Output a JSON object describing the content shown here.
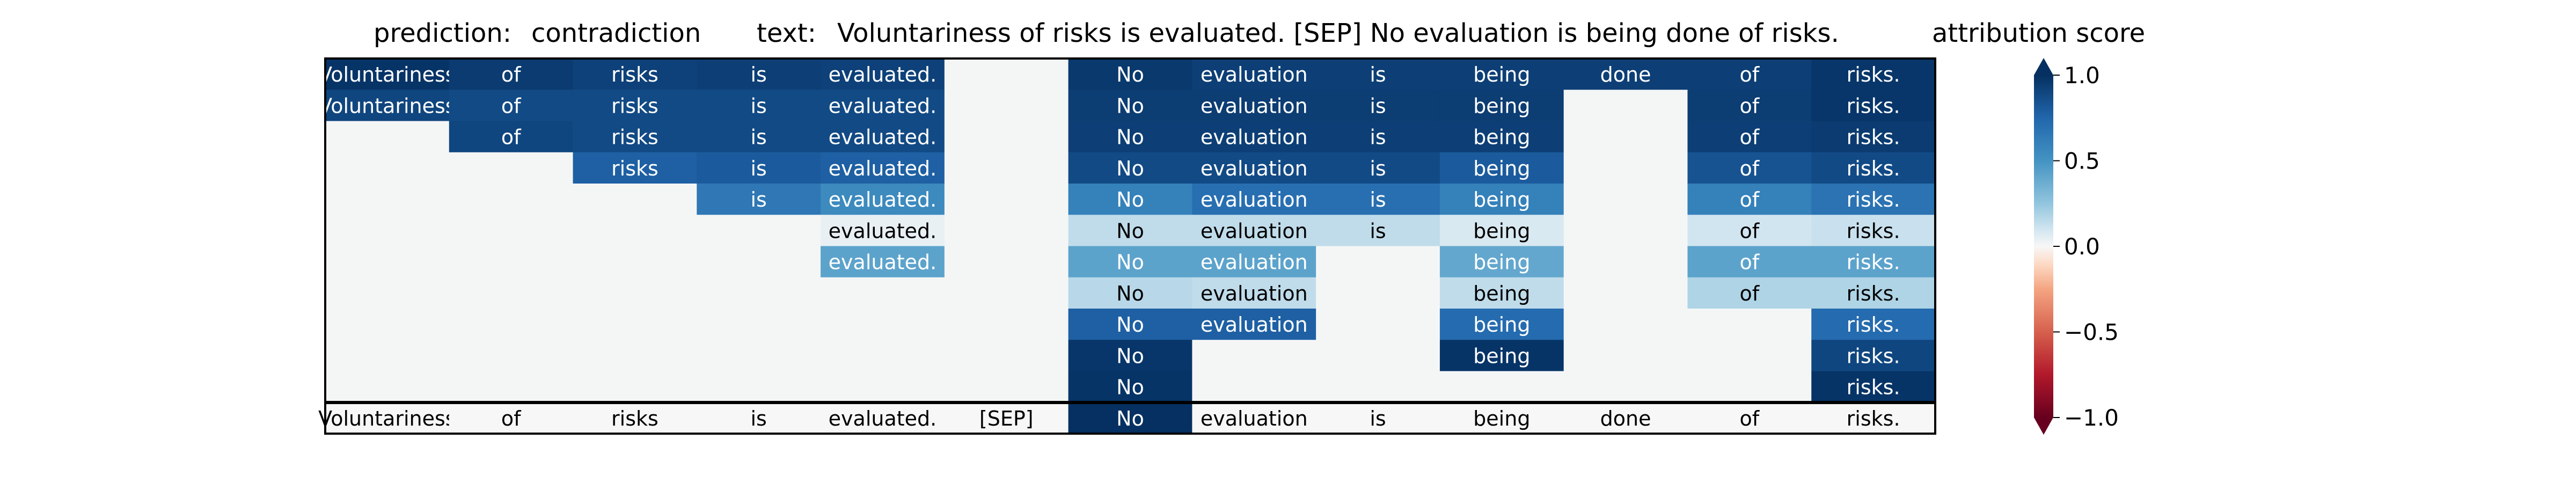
{
  "chart_data": {
    "type": "heatmap",
    "header": {
      "prediction_label": "prediction:",
      "prediction_value": "contradiction",
      "text_label": "text:",
      "text_value": "Voluntariness of risks is evaluated. [SEP] No evaluation is being done of risks."
    },
    "tokens": [
      "Voluntariness",
      "of",
      "risks",
      "is",
      "evaluated.",
      "[SEP]",
      "No",
      "evaluation",
      "is",
      "being",
      "done",
      "of",
      "risks."
    ],
    "rows": [
      [
        0.98,
        0.95,
        0.92,
        0.93,
        0.92,
        null,
        0.96,
        0.93,
        0.93,
        0.93,
        0.93,
        0.93,
        0.97
      ],
      [
        0.9,
        0.88,
        0.88,
        0.88,
        0.88,
        null,
        0.94,
        0.94,
        0.94,
        0.94,
        null,
        0.94,
        0.97
      ],
      [
        null,
        0.9,
        0.88,
        0.88,
        0.88,
        null,
        0.93,
        0.93,
        0.93,
        0.93,
        null,
        0.93,
        0.95
      ],
      [
        null,
        null,
        0.78,
        0.8,
        0.78,
        null,
        0.88,
        0.88,
        0.88,
        0.8,
        null,
        0.84,
        0.88
      ],
      [
        null,
        null,
        null,
        0.65,
        0.55,
        null,
        0.6,
        0.7,
        0.7,
        0.6,
        null,
        0.6,
        0.68
      ],
      [
        null,
        null,
        null,
        null,
        0.04,
        null,
        0.14,
        0.14,
        0.14,
        0.08,
        null,
        0.1,
        0.12
      ],
      [
        null,
        null,
        null,
        null,
        0.42,
        null,
        0.42,
        0.42,
        null,
        0.4,
        null,
        0.42,
        0.42
      ],
      [
        null,
        null,
        null,
        null,
        null,
        null,
        0.16,
        0.14,
        null,
        0.14,
        null,
        0.18,
        0.18
      ],
      [
        null,
        null,
        null,
        null,
        null,
        null,
        0.78,
        0.78,
        null,
        0.72,
        null,
        null,
        0.72
      ],
      [
        null,
        null,
        null,
        null,
        null,
        null,
        0.97,
        null,
        null,
        0.98,
        null,
        null,
        0.9
      ],
      [
        null,
        null,
        null,
        null,
        null,
        null,
        0.98,
        null,
        null,
        null,
        null,
        null,
        0.98
      ],
      [
        0,
        0,
        0,
        0,
        0,
        0,
        1.0,
        0,
        0,
        0,
        0,
        0,
        0
      ]
    ],
    "colorbar": {
      "label": "attribution score",
      "ticks": [
        "1.0",
        "0.5",
        "0.0",
        "−0.5",
        "−1.0"
      ],
      "tick_values": [
        1.0,
        0.5,
        0.0,
        -0.5,
        -1.0
      ],
      "vmin": -1.0,
      "vmax": 1.0,
      "colormap": "RdBu",
      "extend": "both"
    },
    "colors": {
      "empty_cell": "#f4f6f6",
      "text_light": "#ffffff",
      "text_dark": "#000000"
    }
  }
}
